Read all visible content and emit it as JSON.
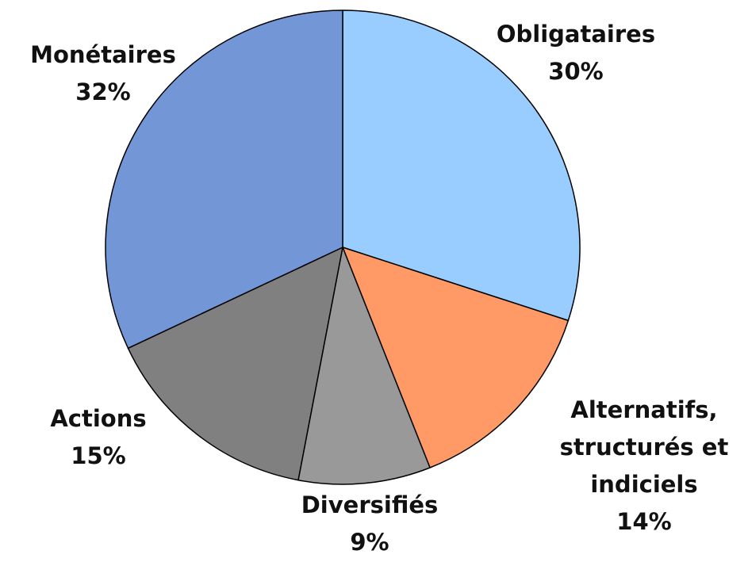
{
  "chart_data": {
    "type": "pie",
    "categories": [
      "Obligataires",
      "Alternatifs, structurés et indiciels",
      "Diversifiés",
      "Actions",
      "Monétaires"
    ],
    "values": [
      30,
      14,
      9,
      15,
      32
    ],
    "value_labels": [
      "30%",
      "14%",
      "9%",
      "15%",
      "32%"
    ],
    "colors": [
      "#99ccff",
      "#ff9966",
      "#999999",
      "#808080",
      "#7396d6"
    ]
  }
}
